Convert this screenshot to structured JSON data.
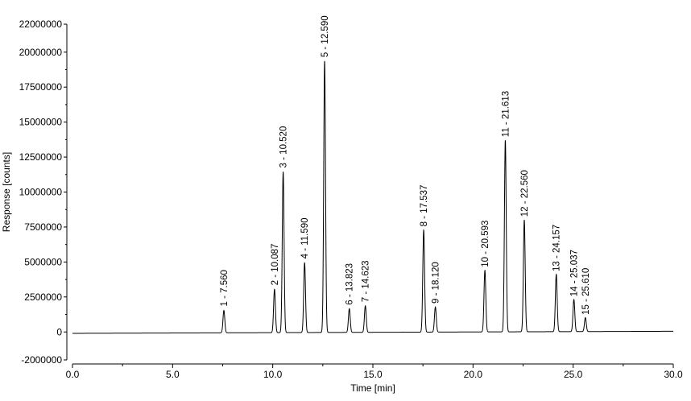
{
  "chart_data": {
    "type": "line",
    "title": "",
    "xlabel": "Time [min]",
    "ylabel": "Response [counts]",
    "xlim": [
      0,
      30
    ],
    "ylim": [
      -2000000,
      22000000
    ],
    "grid": false,
    "x_ticks": [
      0,
      2.5,
      5,
      7.5,
      10,
      12.5,
      15,
      17.5,
      20,
      22.5,
      25,
      27.5,
      30
    ],
    "x_tick_labels": [
      "0.0",
      "",
      "5.0",
      "",
      "10.0",
      "",
      "15.0",
      "",
      "20.0",
      "",
      "25.0",
      "",
      "30.0"
    ],
    "y_ticks": [
      -2000000,
      0,
      2500000,
      5000000,
      7500000,
      10000000,
      12500000,
      15000000,
      17500000,
      20000000,
      22000000
    ],
    "y_tick_labels": [
      "-2000000",
      "0",
      "2500000",
      "5000000",
      "7500000",
      "10000000",
      "12500000",
      "15000000",
      "17500000",
      "20000000",
      "22000000"
    ],
    "baseline": {
      "start": -100000,
      "end": 50000
    },
    "peaks": [
      {
        "label": "1 - 7.560",
        "time": 7.56,
        "height": 1600000,
        "width": 0.045
      },
      {
        "label": "2 - 10.087",
        "time": 10.087,
        "height": 3100000,
        "width": 0.045
      },
      {
        "label": "3 - 10.520",
        "time": 10.52,
        "height": 11500000,
        "width": 0.045
      },
      {
        "label": "4 - 11.590",
        "time": 11.59,
        "height": 5000000,
        "width": 0.045
      },
      {
        "label": "5 - 12.590",
        "time": 12.59,
        "height": 19400000,
        "width": 0.045
      },
      {
        "label": "6 - 13.823",
        "time": 13.823,
        "height": 1700000,
        "width": 0.045
      },
      {
        "label": "7 - 14.623",
        "time": 14.623,
        "height": 1900000,
        "width": 0.045
      },
      {
        "label": "8 - 17.537",
        "time": 17.537,
        "height": 7300000,
        "width": 0.045
      },
      {
        "label": "9 - 18.120",
        "time": 18.12,
        "height": 1800000,
        "width": 0.045
      },
      {
        "label": "10 - 20.593",
        "time": 20.593,
        "height": 4400000,
        "width": 0.045
      },
      {
        "label": "11 - 21.613",
        "time": 21.613,
        "height": 13700000,
        "width": 0.045
      },
      {
        "label": "12 - 22.560",
        "time": 22.56,
        "height": 8000000,
        "width": 0.045
      },
      {
        "label": "13 - 24.157",
        "time": 24.157,
        "height": 4100000,
        "width": 0.045
      },
      {
        "label": "14 - 25.037",
        "time": 25.037,
        "height": 2300000,
        "width": 0.045
      },
      {
        "label": "15 - 25.610",
        "time": 25.61,
        "height": 1000000,
        "width": 0.045
      }
    ]
  },
  "colors": {
    "trace": "#000000",
    "axis": "#000000",
    "background": "#ffffff"
  }
}
